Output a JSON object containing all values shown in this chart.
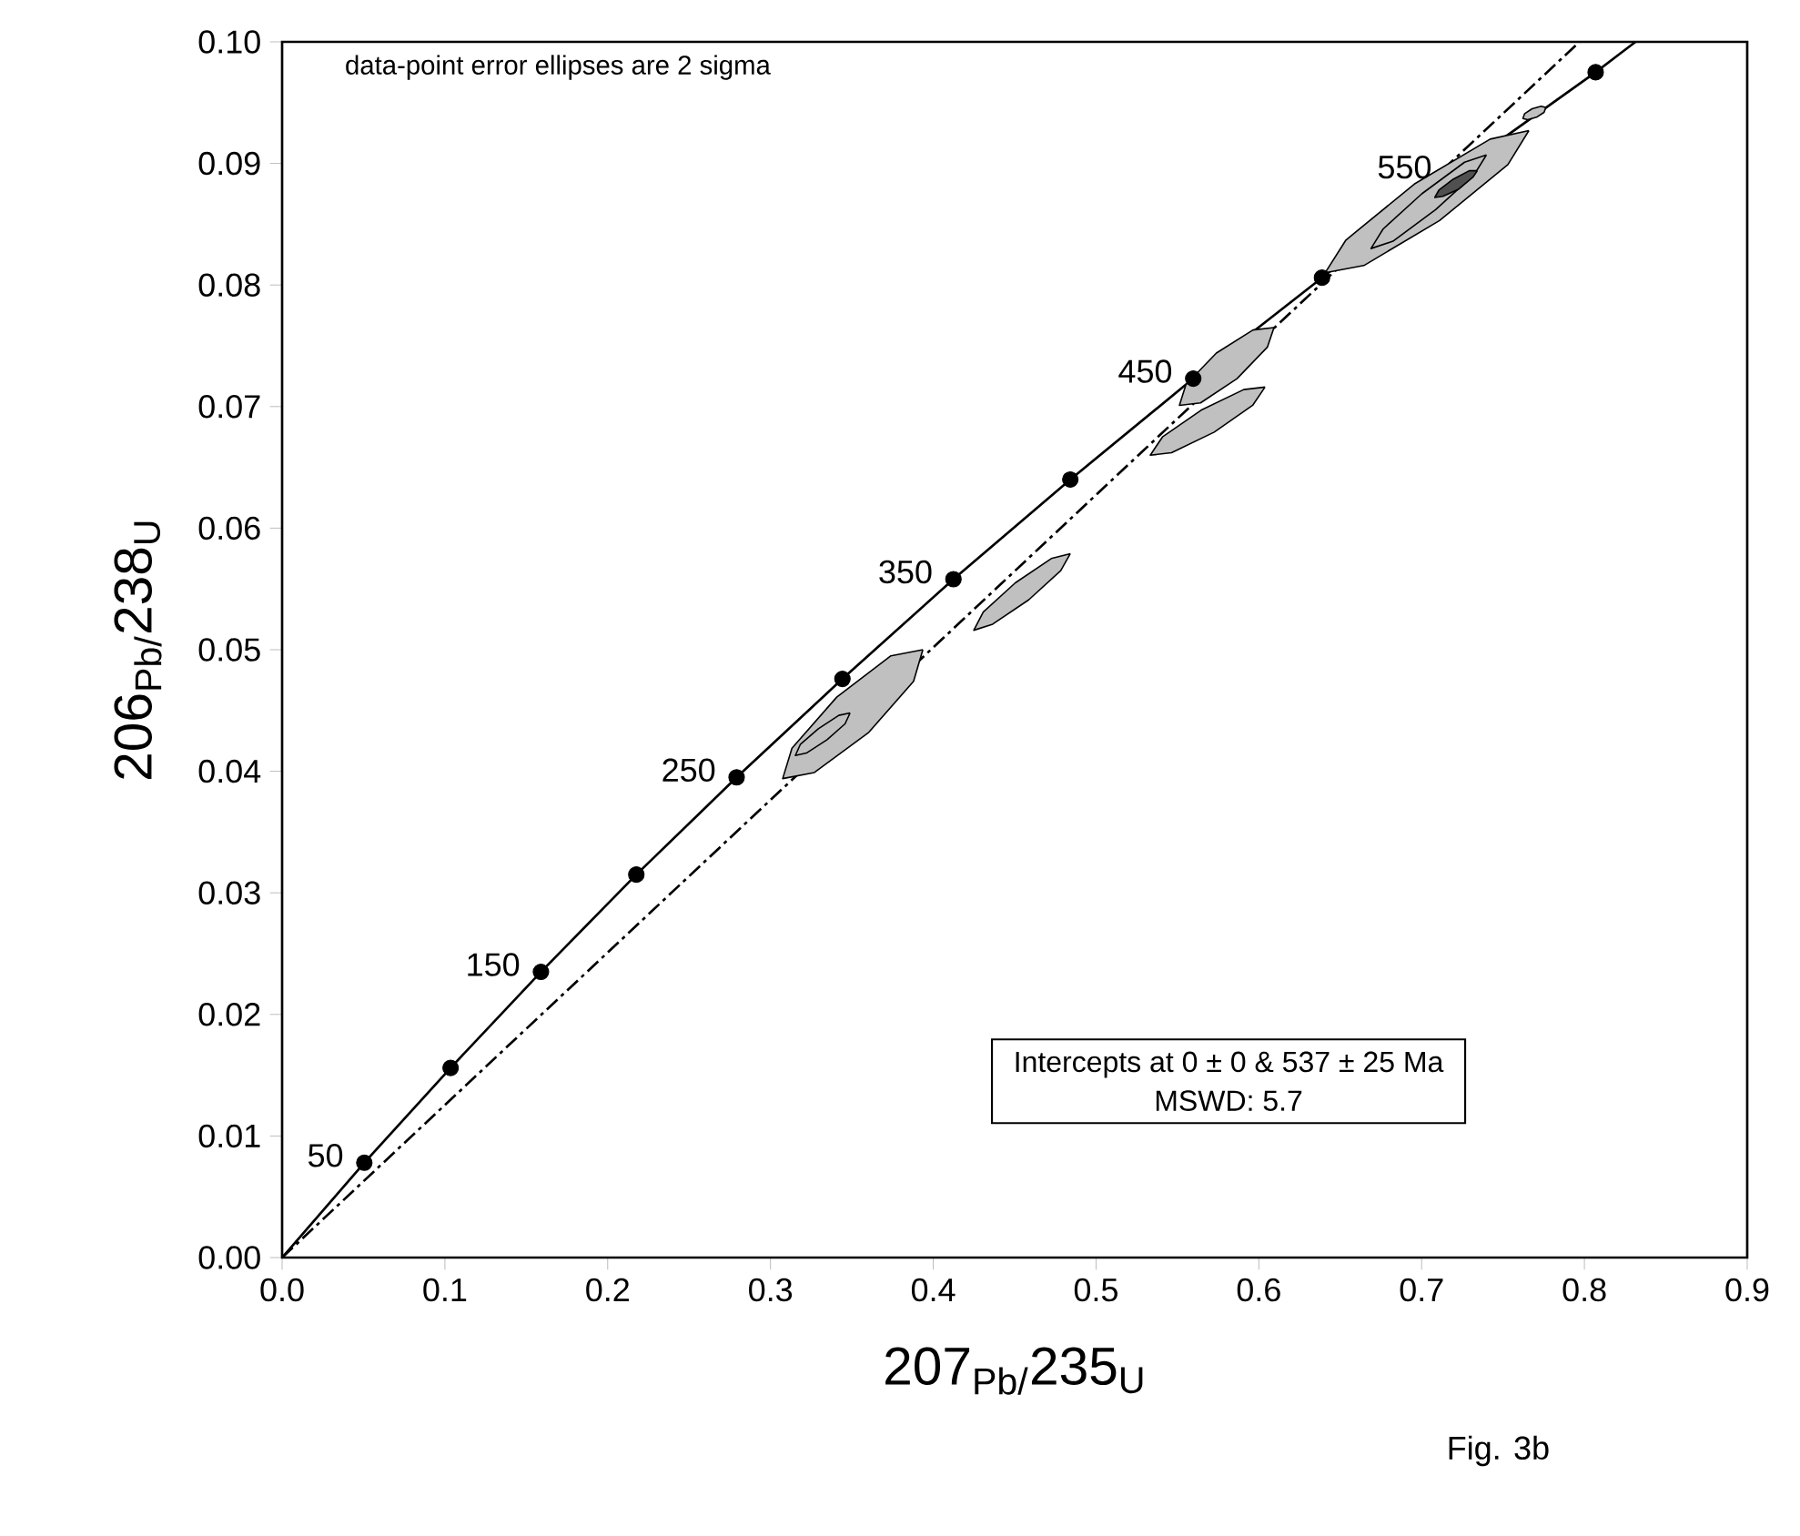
{
  "chart_data": {
    "type": "scatter",
    "xlabel": "207$_{Pb/}$235$_{U}$",
    "ylabel": "206$_{Pb/}$238$_{U}$",
    "xlim": [
      0,
      0.9
    ],
    "ylim": [
      0,
      0.1
    ],
    "xticks": [
      {
        "value": 0,
        "label": "0.0"
      },
      0.1,
      0.2,
      0.3,
      0.4,
      0.5,
      0.6,
      0.7,
      0.8,
      0.9
    ],
    "yticks": [
      {
        "value": 0,
        "label": "0.00"
      },
      0.01,
      0.02,
      0.03,
      0.04,
      0.05,
      0.06,
      0.07,
      0.08,
      0.09,
      {
        "value": 0.1,
        "label": "0.10"
      }
    ],
    "series": [
      {
        "type": "line",
        "color": "#000000",
        "line_style": "solid",
        "marker": "none",
        "x": [
          0,
          0.0505,
          0.1035,
          0.159,
          0.2176,
          0.2792,
          0.3442,
          0.4124,
          0.4842,
          0.5597,
          0.6388,
          0.719,
          0.8069,
          0.8314
        ],
        "values": [
          0,
          0.0078,
          0.0156,
          0.0235,
          0.0315,
          0.0395,
          0.0476,
          0.0558,
          0.064,
          0.0723,
          0.0806,
          0.0891,
          0.0975,
          0.1
        ]
      },
      {
        "type": "line",
        "color": "#000000",
        "line_style": "dashed",
        "marker": "none",
        "x": [
          0,
          0.797
        ],
        "values": [
          0,
          0.1
        ]
      },
      {
        "type": "area",
        "color": "#c0c0c0",
        "x": [
          0.3936,
          0.3879,
          0.3604,
          0.327,
          0.3075,
          0.3132,
          0.3407,
          0.374,
          0.3936
        ],
        "values": [
          0.05,
          0.0474,
          0.0432,
          0.0399,
          0.0394,
          0.0419,
          0.0461,
          0.0495,
          0.05
        ]
      },
      {
        "type": "area",
        "color": "#c0c0c0",
        "x": [
          0.3489,
          0.3458,
          0.3348,
          0.3221,
          0.3153,
          0.3183,
          0.3294,
          0.342,
          0.3489
        ],
        "values": [
          0.0448,
          0.0439,
          0.0426,
          0.0415,
          0.0413,
          0.0422,
          0.0435,
          0.0446,
          0.0448
        ]
      },
      {
        "type": "area",
        "color": "#c0c0c0",
        "x": [
          0.4842,
          0.4783,
          0.4586,
          0.4365,
          0.4249,
          0.4307,
          0.4504,
          0.4725,
          0.4842
        ],
        "values": [
          0.0579,
          0.0565,
          0.0541,
          0.0521,
          0.0516,
          0.0531,
          0.0555,
          0.0575,
          0.0579
        ]
      },
      {
        "type": "area",
        "color": "#c0c0c0",
        "x": [
          0.6038,
          0.5962,
          0.5726,
          0.5464,
          0.5333,
          0.5408,
          0.5645,
          0.5907,
          0.6038
        ],
        "values": [
          0.0716,
          0.0701,
          0.0679,
          0.0662,
          0.066,
          0.0675,
          0.0697,
          0.0714,
          0.0716
        ]
      },
      {
        "type": "area",
        "color": "#c0c0c0",
        "x": [
          0.6093,
          0.6053,
          0.5866,
          0.5642,
          0.5512,
          0.5552,
          0.5739,
          0.5964,
          0.6093
        ],
        "values": [
          0.0765,
          0.0749,
          0.0723,
          0.0703,
          0.0701,
          0.0718,
          0.0744,
          0.0763,
          0.0765
        ]
      },
      {
        "type": "area",
        "color": "#c0c0c0",
        "x": [
          0.7659,
          0.753,
          0.711,
          0.6645,
          0.6407,
          0.6535,
          0.6955,
          0.7421,
          0.7659
        ],
        "values": [
          0.0927,
          0.0899,
          0.0853,
          0.0816,
          0.081,
          0.0837,
          0.0883,
          0.092,
          0.0927
        ]
      },
      {
        "type": "area",
        "color": "#c0c0c0",
        "x": [
          0.7398,
          0.7324,
          0.7086,
          0.6824,
          0.6689,
          0.6763,
          0.7001,
          0.7264,
          0.7398
        ],
        "values": [
          0.0907,
          0.0891,
          0.0862,
          0.0836,
          0.083,
          0.0846,
          0.0875,
          0.0901,
          0.0907
        ]
      },
      {
        "type": "area",
        "color": "#505050",
        "x": [
          0.7342,
          0.7317,
          0.7229,
          0.7131,
          0.7081,
          0.7106,
          0.7194,
          0.7292,
          0.7342
        ],
        "values": [
          0.0894,
          0.0889,
          0.0879,
          0.0873,
          0.0872,
          0.0878,
          0.0887,
          0.0894,
          0.0894
        ]
      },
      {
        "type": "area",
        "color": "#c0c0c0",
        "x": [
          0.7763,
          0.7752,
          0.7706,
          0.7651,
          0.7622,
          0.7633,
          0.7679,
          0.7734,
          0.7763
        ],
        "values": [
          0.0946,
          0.0942,
          0.0938,
          0.0936,
          0.0937,
          0.0941,
          0.0945,
          0.0947,
          0.0946
        ]
      },
      {
        "color": "#000000",
        "marker": "circle",
        "x": [
          0.0505,
          0.1035,
          0.159,
          0.2176,
          0.2792,
          0.3442,
          0.4124,
          0.4842,
          0.5597,
          0.6388,
          0.8069
        ],
        "values": [
          0.0078,
          0.0156,
          0.0235,
          0.0315,
          0.0395,
          0.0476,
          0.0558,
          0.064,
          0.0723,
          0.0806,
          0.0975
        ]
      }
    ],
    "annotations": [
      "data-point error ellipses are 2 sigma",
      "Intercepts at 0 ± 0 & 537 ± 25 Ma",
      "MSWD: 5.7",
      "Fig. 3b",
      {
        "text": "50",
        "x": 0.0505,
        "y": 0.0078
      },
      {
        "text": "150",
        "x": 0.159,
        "y": 0.0235
      },
      {
        "text": "250",
        "x": 0.2792,
        "y": 0.0395
      },
      {
        "text": "350",
        "x": 0.4124,
        "y": 0.0558
      },
      {
        "text": "450",
        "x": 0.5597,
        "y": 0.0723
      },
      {
        "text": "550",
        "x": 0.719,
        "y": 0.0891
      }
    ]
  }
}
